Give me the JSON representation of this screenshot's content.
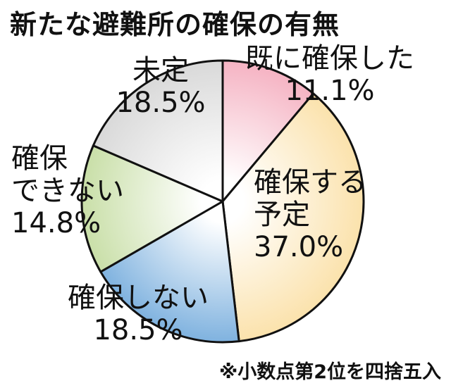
{
  "title": "新たな避難所の確保の有無",
  "note": "※小数点第2位を四捨五入",
  "chart_data": {
    "type": "pie",
    "title": "新たな避難所の確保の有無",
    "start_angle_deg": 0,
    "direction": "clockwise",
    "slices": [
      {
        "label_lines": [
          "既に確保した"
        ],
        "label": "既に確保した",
        "value": 11.1,
        "value_label": "11.1%",
        "color": "#f5b3c3"
      },
      {
        "label_lines": [
          "確保する",
          "予定"
        ],
        "label": "確保する予定",
        "value": 37.0,
        "value_label": "37.0%",
        "color": "#fbe2ac"
      },
      {
        "label_lines": [
          "確保しない"
        ],
        "label": "確保しない",
        "value": 18.5,
        "value_label": "18.5%",
        "color": "#7fb2df"
      },
      {
        "label_lines": [
          "確保",
          "できない"
        ],
        "label": "確保できない",
        "value": 14.8,
        "value_label": "14.8%",
        "color": "#c9dfa8"
      },
      {
        "label_lines": [
          "未定"
        ],
        "label": "未定",
        "value": 18.5,
        "value_label": "18.5%",
        "color": "#d9d9d9"
      }
    ]
  }
}
